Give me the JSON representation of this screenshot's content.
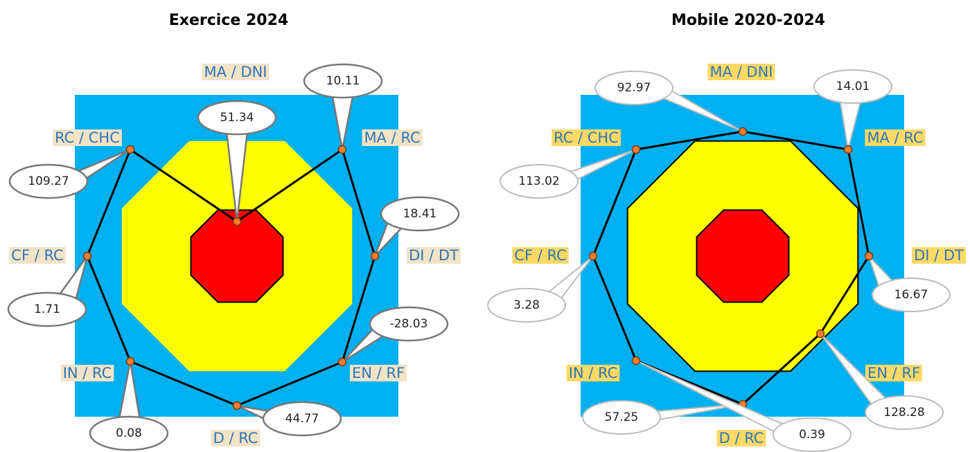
{
  "panels": [
    {
      "title": "Exercice 2024",
      "axes": [
        {
          "label": "MA / DNI",
          "value": 51.34
        },
        {
          "label": "MA / RC",
          "value": 10.11
        },
        {
          "label": "DI / DT",
          "value": 18.41
        },
        {
          "label": "EN / RF",
          "value": -28.03
        },
        {
          "label": "D / RC",
          "value": 44.77
        },
        {
          "label": "IN / RC",
          "value": 0.08
        },
        {
          "label": "CF / RC",
          "value": 1.71
        },
        {
          "label": "RC / CHC",
          "value": 109.27
        }
      ]
    },
    {
      "title": "Mobile 2020-2024",
      "axes": [
        {
          "label": "MA / DNI",
          "value": 92.97
        },
        {
          "label": "MA / RC",
          "value": 14.01
        },
        {
          "label": "DI / DT",
          "value": 16.67
        },
        {
          "label": "EN / RF",
          "value": 128.28
        },
        {
          "label": "D / RC",
          "value": 57.25
        },
        {
          "label": "IN / RC",
          "value": 0.39
        },
        {
          "label": "CF / RC",
          "value": 3.28
        },
        {
          "label": "RC / CHC",
          "value": 113.02
        }
      ]
    }
  ]
}
